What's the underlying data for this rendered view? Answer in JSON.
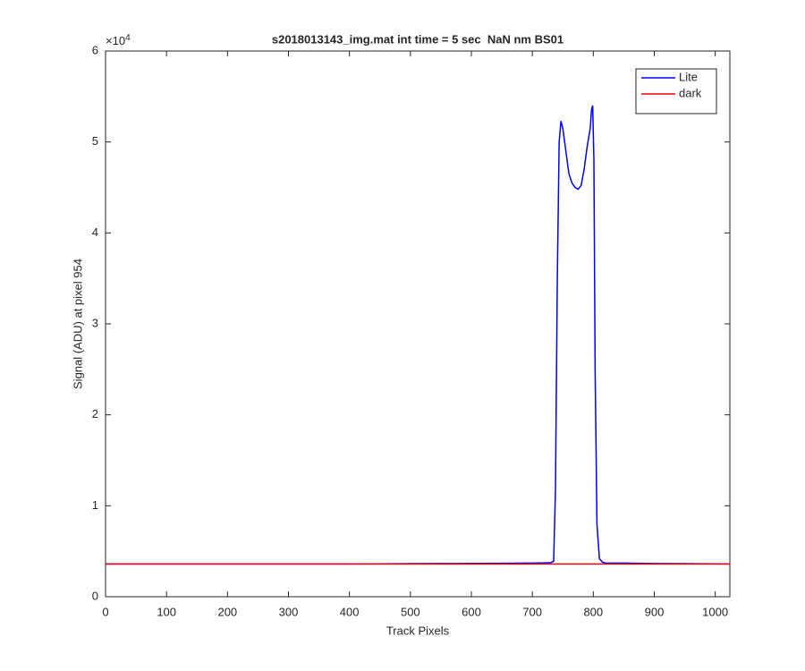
{
  "chart_data": {
    "type": "line",
    "title": "s2018013143_img.mat int time = 5 sec  NaN nm BS01",
    "xlabel": "Track Pixels",
    "ylabel": "Signal (ADU) at pixel 954",
    "y_multiplier": {
      "base": "×10",
      "exponent": "4"
    },
    "x": [
      0,
      50,
      100,
      150,
      200,
      250,
      300,
      350,
      400,
      450,
      500,
      550,
      600,
      650,
      700,
      720,
      730,
      735,
      738,
      741,
      744,
      747,
      750,
      755,
      760,
      765,
      770,
      775,
      780,
      785,
      790,
      795,
      797,
      799,
      801,
      803,
      806,
      810,
      815,
      820,
      850,
      900,
      950,
      1000,
      1024
    ],
    "series": [
      {
        "name": "Lite",
        "color": "#0000ff",
        "values": [
          3600,
          3600,
          3600,
          3600,
          3600,
          3600,
          3600,
          3600,
          3600,
          3620,
          3640,
          3650,
          3660,
          3680,
          3700,
          3720,
          3750,
          3900,
          12000,
          35000,
          50000,
          52300,
          51500,
          49000,
          46500,
          45500,
          45000,
          44800,
          45200,
          47000,
          49500,
          51500,
          53500,
          54000,
          48000,
          25000,
          8000,
          4200,
          3800,
          3700,
          3700,
          3650,
          3640,
          3620,
          3600
        ]
      },
      {
        "name": "dark",
        "color": "#ff0000",
        "values": [
          3600,
          3600,
          3600,
          3600,
          3600,
          3600,
          3600,
          3600,
          3600,
          3600,
          3600,
          3600,
          3600,
          3600,
          3600,
          3600,
          3600,
          3600,
          3600,
          3600,
          3600,
          3600,
          3600,
          3600,
          3600,
          3600,
          3600,
          3600,
          3600,
          3600,
          3600,
          3600,
          3600,
          3600,
          3600,
          3600,
          3600,
          3600,
          3600,
          3600,
          3600,
          3600,
          3600,
          3600,
          3600
        ]
      }
    ],
    "xlim": [
      0,
      1024
    ],
    "ylim": [
      0,
      60000
    ],
    "xticks": [
      0,
      100,
      200,
      300,
      400,
      500,
      600,
      700,
      800,
      900,
      1000
    ],
    "yticks": [
      {
        "value": 0,
        "label": "0"
      },
      {
        "value": 10000,
        "label": "1"
      },
      {
        "value": 20000,
        "label": "2"
      },
      {
        "value": 30000,
        "label": "3"
      },
      {
        "value": 40000,
        "label": "4"
      },
      {
        "value": 50000,
        "label": "5"
      },
      {
        "value": 60000,
        "label": "6"
      }
    ],
    "legend": "upper right",
    "grid": false
  }
}
